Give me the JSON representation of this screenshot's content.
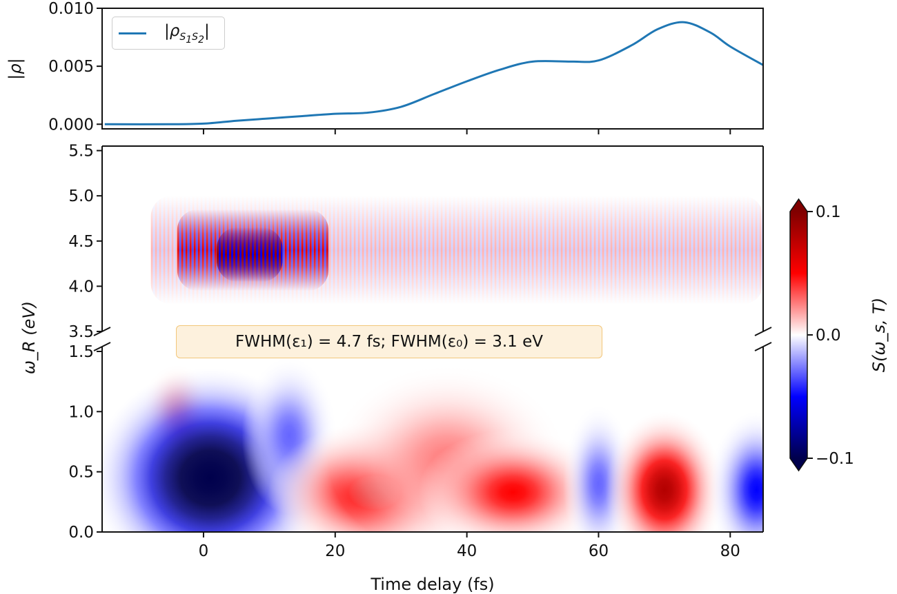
{
  "chart_data": [
    {
      "type": "line",
      "ylabel": "|ρ|",
      "xlim": [
        -15.4,
        85
      ],
      "ylim": [
        -0.0004,
        0.01
      ],
      "yticks": [
        "0.000",
        "0.005",
        "0.010"
      ],
      "ytick_values": [
        0,
        0.005,
        0.01
      ],
      "xtick_values": [
        0,
        20,
        40,
        60,
        80
      ],
      "legend": {
        "position": "top-left",
        "label_main": "|ρ",
        "sub1": "S",
        "sub1n": "1",
        "sub2": "S",
        "sub2n": "2",
        "label_end": "|"
      },
      "series": [
        {
          "name": "|ρ_S1S2|",
          "color": "#1f77b4",
          "x": [
            -15,
            -5,
            0,
            5,
            10,
            15,
            20,
            25,
            30,
            35,
            40,
            45,
            50,
            56,
            60,
            65,
            69,
            73,
            77,
            80,
            85
          ],
          "y": [
            0,
            0,
            5e-05,
            0.0003,
            0.0005,
            0.0007,
            0.0009,
            0.001,
            0.0015,
            0.0026,
            0.0037,
            0.0047,
            0.0054,
            0.0054,
            0.0055,
            0.0068,
            0.0082,
            0.0088,
            0.0079,
            0.0067,
            0.0051
          ]
        }
      ]
    },
    {
      "type": "heatmap",
      "xlabel": "Time delay (fs)",
      "ylabel": "ω_R (eV)",
      "xlim": [
        -15.4,
        85
      ],
      "xticks": [
        "0",
        "20",
        "40",
        "60",
        "80"
      ],
      "xtick_values": [
        0,
        20,
        40,
        60,
        80
      ],
      "upper_ylim": [
        3.5,
        5.55
      ],
      "upper_yticks": [
        "3.5",
        "4.0",
        "4.5",
        "5.0",
        "5.5"
      ],
      "upper_ytick_values": [
        3.5,
        4.0,
        4.5,
        5.0,
        5.5
      ],
      "lower_ylim": [
        0,
        1.54
      ],
      "lower_yticks": [
        "0.0",
        "0.5",
        "1.0",
        "1.5"
      ],
      "lower_ytick_values": [
        0,
        0.5,
        1.0,
        1.5
      ],
      "annotation": "FWHM(ε₁) = 4.7 fs; FWHM(ε₀) = 3.1 eV",
      "colorbar": {
        "label": "S(ω_s, T)",
        "ticks": [
          "−0.1",
          "0.0",
          "0.1"
        ],
        "tick_values": [
          -0.1,
          0.0,
          0.1
        ],
        "range": [
          -0.1,
          0.1
        ],
        "colormap": [
          "#00004c",
          "#0000ff",
          "#ffffff",
          "#ff0000",
          "#800000"
        ]
      },
      "upper_features": [
        {
          "t0": -8,
          "t1": 85,
          "omega": 4.4,
          "omega_halfwidth": 0.6,
          "value": 0.015,
          "oscillating": true
        },
        {
          "t0": -4,
          "t1": 19,
          "omega": 4.4,
          "omega_halfwidth": 0.45,
          "value": 0.06,
          "oscillating": true
        },
        {
          "t0": 2,
          "t1": 12,
          "omega": 4.35,
          "omega_halfwidth": 0.3,
          "value": 0.09,
          "oscillating": true
        }
      ],
      "lower_features": [
        {
          "t": -4,
          "omega": 1.0,
          "dt": 3,
          "domega": 0.3,
          "value": 0.02
        },
        {
          "t": 1,
          "omega": 0.45,
          "dt": 10,
          "domega": 0.7,
          "value": -0.13
        },
        {
          "t": 13,
          "omega": 0.8,
          "dt": 4,
          "domega": 0.5,
          "value": -0.03
        },
        {
          "t": 26,
          "omega": 0.33,
          "dt": 9,
          "domega": 0.45,
          "value": 0.06
        },
        {
          "t": 37,
          "omega": 0.6,
          "dt": 10,
          "domega": 0.6,
          "value": 0.025
        },
        {
          "t": 47,
          "omega": 0.33,
          "dt": 8,
          "domega": 0.4,
          "value": 0.05
        },
        {
          "t": 60,
          "omega": 0.4,
          "dt": 3,
          "domega": 0.5,
          "value": -0.03
        },
        {
          "t": 70,
          "omega": 0.35,
          "dt": 5,
          "domega": 0.5,
          "value": 0.08
        },
        {
          "t": 84,
          "omega": 0.35,
          "dt": 4,
          "domega": 0.5,
          "value": -0.05
        }
      ]
    }
  ]
}
